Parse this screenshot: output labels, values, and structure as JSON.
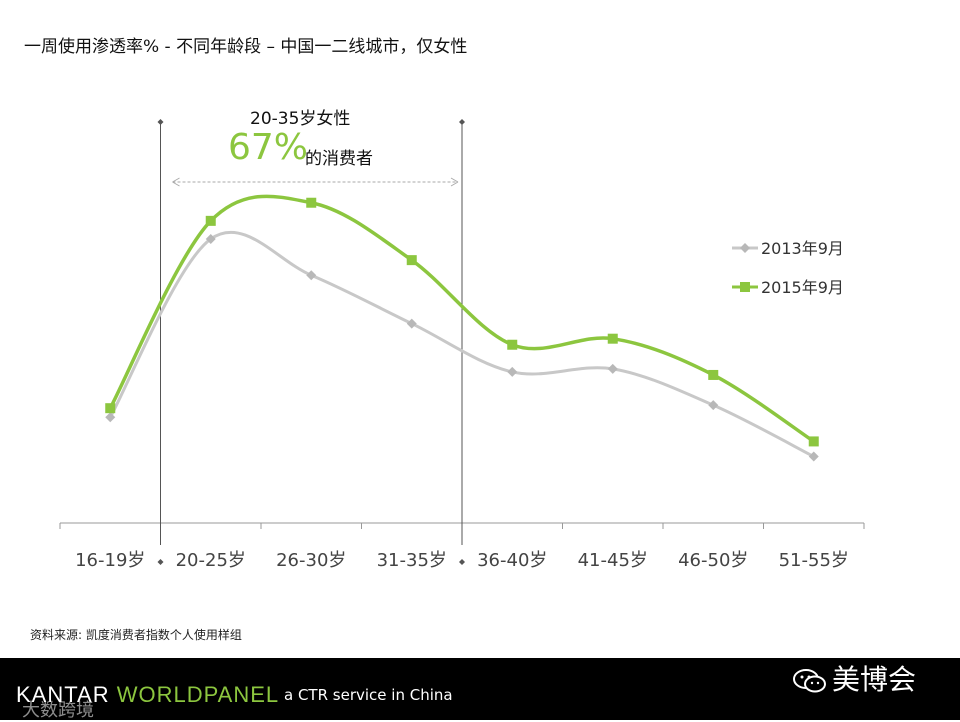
{
  "title": "一周使用渗透率% - 不同年龄段 – 中国一二线城市，仅女性",
  "annotation": {
    "label": "20-35岁女性",
    "percent": "67%",
    "suffix": "的消费者",
    "range_start": "20-25岁",
    "range_end": "31-35岁"
  },
  "source": "资料来源: 凯度消费者指数个人使用样组",
  "footer": {
    "logo_part1": "KANTAR ",
    "logo_part2": "WORLDPANEL",
    "tagline": "a CTR service in China",
    "watermark_left": "大数跨境",
    "watermark_right": "美博会"
  },
  "colors": {
    "series_2013": "#c8c8c8",
    "series_2015": "#8cc63f",
    "axis": "#999999",
    "footer_bg": "#000000"
  },
  "chart_data": {
    "type": "line",
    "categories": [
      "16-19岁",
      "20-25岁",
      "26-30岁",
      "31-35岁",
      "36-40岁",
      "41-45岁",
      "46-50岁",
      "51-55岁"
    ],
    "series": [
      {
        "name": "2013年9月",
        "marker": "diamond",
        "values": [
          35,
          94,
          82,
          66,
          50,
          51,
          39,
          22
        ]
      },
      {
        "name": "2015年9月",
        "marker": "square",
        "values": [
          38,
          100,
          106,
          87,
          59,
          61,
          49,
          27
        ]
      }
    ],
    "ylim": [
      0,
      140
    ],
    "grid": false,
    "legend_position": "right",
    "smooth": true
  }
}
